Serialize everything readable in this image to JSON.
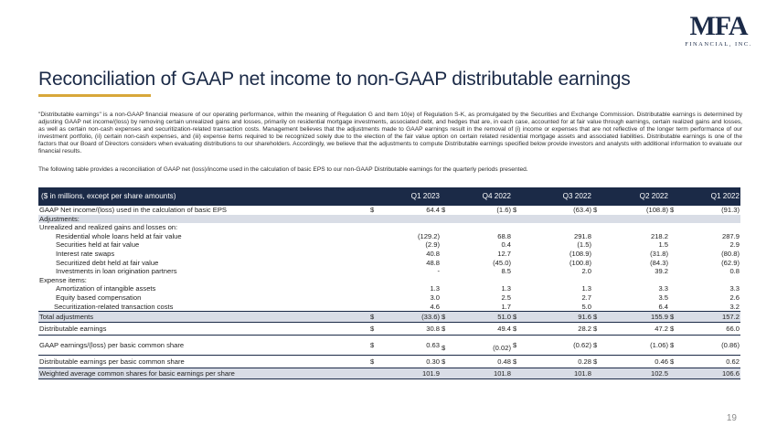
{
  "logo": {
    "mark": "MFA",
    "sub": "FINANCIAL, INC."
  },
  "title": "Reconciliation of GAAP net income to non-GAAP distributable earnings",
  "paragraphs": [
    "\"Distributable earnings\" is a non-GAAP financial measure of our operating performance, within the meaning of Regulation G and Item 10(e) of Regulation S-K, as promulgated by the Securities and Exchange Commission. Distributable earnings is determined by adjusting GAAP net income/(loss) by removing certain unrealized gains and losses, primarily on residential mortgage investments, associated debt, and hedges that are, in each case, accounted for at fair value through earnings, certain realized gains and losses, as well as certain non-cash expenses and securitization-related transaction costs. Management believes that the adjustments made to GAAP earnings result in the removal of (i) income or expenses that are not reflective of the longer term performance of our investment portfolio, (ii) certain non-cash expenses, and (iii) expense items required to be recognized solely due to the election of the fair value option on certain related residential mortgage assets and associated liabilities. Distributable earnings is one of the factors that our Board of Directors considers when evaluating distributions to our shareholders. Accordingly, we believe that the adjustments to compute Distributable earnings specified below provide investors and analysts with additional information to evaluate our financial results.",
    "The following table provides a reconciliation of GAAP net (loss)/income used in the calculation of basic EPS to our non-GAAP Distributable earnings for the quarterly periods presented."
  ],
  "table": {
    "header_label": "($ in millions, except per share amounts)",
    "columns": [
      "Q1 2023",
      "Q4 2022",
      "Q3 2022",
      "Q2 2022",
      "Q1 2022"
    ],
    "gaap_net": {
      "label": "GAAP Net income/(loss) used in the calculation of basic EPS",
      "values": [
        "64.4",
        "(1.6)",
        "(63.4)",
        "(108.8)",
        "(91.3)"
      ]
    },
    "adjustments_label": "Adjustments:",
    "unrealized_label": "Unrealized and realized gains and losses on:",
    "unrealized_rows": [
      {
        "label": "Residential whole loans held at fair value",
        "values": [
          "(129.2)",
          "68.8",
          "291.8",
          "218.2",
          "287.9"
        ]
      },
      {
        "label": "Securities held at fair value",
        "values": [
          "(2.9)",
          "0.4",
          "(1.5)",
          "1.5",
          "2.9"
        ]
      },
      {
        "label": "Interest rate swaps",
        "values": [
          "40.8",
          "12.7",
          "(108.9)",
          "(31.8)",
          "(80.8)"
        ]
      },
      {
        "label": "Securitized debt held at fair value",
        "values": [
          "48.8",
          "(45.0)",
          "(100.8)",
          "(84.3)",
          "(62.9)"
        ]
      },
      {
        "label": "Investments in loan origination partners",
        "values": [
          "-",
          "8.5",
          "2.0",
          "39.2",
          "0.8"
        ]
      }
    ],
    "expense_label": "Expense items:",
    "expense_rows": [
      {
        "label": "Amortization of intangible assets",
        "values": [
          "1.3",
          "1.3",
          "1.3",
          "3.3",
          "3.3"
        ]
      },
      {
        "label": "Equity based compensation",
        "values": [
          "3.0",
          "2.5",
          "2.7",
          "3.5",
          "2.6"
        ]
      },
      {
        "label": "Securitization-related transaction costs",
        "values": [
          "4.6",
          "1.7",
          "5.0",
          "6.4",
          "3.2"
        ]
      }
    ],
    "total_adjustments": {
      "label": "Total adjustments",
      "values": [
        "(33.6)",
        "51.0",
        "91.6",
        "155.9",
        "157.2"
      ]
    },
    "distributable": {
      "label": "Distributable earnings",
      "values": [
        "30.8",
        "49.4",
        "28.2",
        "47.2",
        "66.0"
      ]
    },
    "gaap_eps": {
      "label": "GAAP earnings/(loss) per basic common share",
      "values": [
        "0.63",
        "(0.02)",
        "(0.62)",
        "(1.06)",
        "(0.86)"
      ]
    },
    "dist_eps": {
      "label": "Distributable earnings per basic common share",
      "values": [
        "0.30",
        "0.48",
        "0.28",
        "0.46",
        "0.62"
      ]
    },
    "weighted": {
      "label": "Weighted average common shares for basic earnings per share",
      "values": [
        "101.9",
        "101.8",
        "101.8",
        "102.5",
        "106.6"
      ]
    },
    "currency_symbol": "$"
  },
  "page_number": "19"
}
